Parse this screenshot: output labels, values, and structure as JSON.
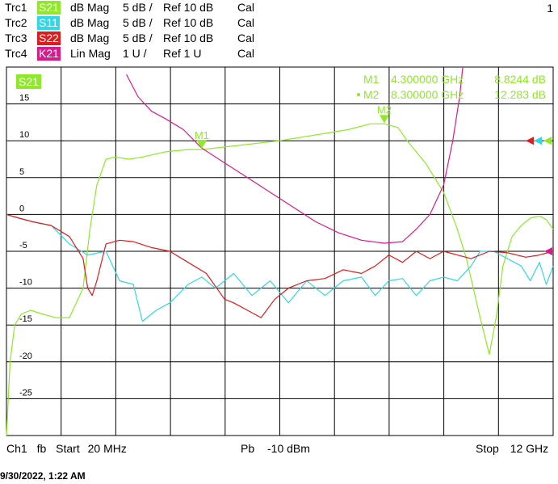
{
  "header": {
    "page_number": "1",
    "traces": [
      {
        "name": "Trc1",
        "param": "S21",
        "format": "dB Mag",
        "scale": "5 dB /",
        "ref": "Ref 10 dB",
        "cal": "Cal",
        "color": "#8fe82a"
      },
      {
        "name": "Trc2",
        "param": "S11",
        "format": "dB Mag",
        "scale": "5 dB /",
        "ref": "Ref 10 dB",
        "cal": "Cal",
        "color": "#33d6e6"
      },
      {
        "name": "Trc3",
        "param": "S22",
        "format": "dB Mag",
        "scale": "5 dB /",
        "ref": "Ref 10 dB",
        "cal": "Cal",
        "color": "#e01b1b"
      },
      {
        "name": "Trc4",
        "param": "K21",
        "format": "Lin Mag",
        "scale": "1 U /",
        "ref": "Ref 1 U",
        "cal": "Cal",
        "color": "#d81b8c"
      }
    ]
  },
  "footer": {
    "channel": "Ch1",
    "mode": "fb",
    "start_label": "Start",
    "start_value": "20 MHz",
    "power_label": "Pb",
    "power_value": "-10 dBm",
    "stop_label": "Stop",
    "stop_value": "12 GHz",
    "datestamp": "9/30/2022, 1:22 AM"
  },
  "chart_data": {
    "type": "line",
    "active_trace_label": "S21",
    "xlim": [
      0.02,
      12
    ],
    "ylim": [
      -30,
      20
    ],
    "y_ticks": [
      15,
      10,
      5,
      0,
      -5,
      -10,
      -15,
      -20,
      -25
    ],
    "y_tick_labels": [
      "15",
      "10",
      "5",
      "0",
      "-5",
      "-10",
      "-15",
      "-20",
      "-25"
    ],
    "grid": true,
    "markers": [
      {
        "name": "M1",
        "freq": "4.300000 GHz",
        "value": "8.8244 dB",
        "x": 4.3,
        "y": 8.82,
        "active": false
      },
      {
        "name": "M2",
        "freq": "8.300000 GHz",
        "value": "12.283 dB",
        "x": 8.3,
        "y": 12.28,
        "active": true
      }
    ],
    "series": [
      {
        "name": "S21",
        "color": "#8fe82a",
        "x": [
          0.02,
          0.1,
          0.2,
          0.35,
          0.55,
          0.8,
          1.1,
          1.4,
          1.7,
          1.85,
          2.0,
          2.2,
          2.4,
          2.7,
          3.0,
          3.5,
          4.0,
          4.3,
          5.0,
          6.0,
          7.0,
          7.5,
          8.0,
          8.3,
          8.6,
          8.8,
          9.2,
          9.6,
          9.9,
          10.1,
          10.4,
          10.6,
          10.75,
          10.9,
          11.1,
          11.3,
          11.5,
          11.7,
          11.85,
          12.0
        ],
        "y": [
          -30,
          -20,
          -15,
          -13.5,
          -13,
          -13.5,
          -14,
          -14,
          -10,
          -2,
          4,
          7.5,
          7.8,
          7.5,
          7.8,
          8.5,
          8.8,
          8.8,
          9.3,
          10,
          11,
          11.5,
          12.3,
          12.3,
          11.8,
          10,
          7,
          3,
          -2,
          -6,
          -14,
          -19,
          -14,
          -7,
          -3,
          -1.5,
          -0.5,
          -0.2,
          -0.7,
          -2
        ]
      },
      {
        "name": "S11",
        "color": "#33d6e6",
        "x": [
          0.02,
          0.3,
          0.6,
          1.0,
          1.4,
          1.8,
          2.2,
          2.5,
          2.8,
          3.0,
          3.3,
          3.6,
          4.0,
          4.3,
          4.6,
          5.0,
          5.4,
          5.8,
          6.2,
          6.6,
          7.0,
          7.4,
          7.8,
          8.1,
          8.4,
          8.7,
          9.0,
          9.3,
          9.6,
          9.9,
          10.2,
          10.4,
          10.7,
          11.0,
          11.3,
          11.5,
          11.7,
          11.85,
          12.0
        ],
        "y": [
          0,
          -0.5,
          -1,
          -1.5,
          -4,
          -5.5,
          -5,
          -9,
          -9.5,
          -14.5,
          -13,
          -12,
          -9.5,
          -8.5,
          -10,
          -8,
          -11,
          -9,
          -12,
          -9,
          -11,
          -9,
          -8.5,
          -11,
          -9,
          -8.7,
          -11,
          -9,
          -8.5,
          -9,
          -7,
          -5,
          -5,
          -6,
          -7,
          -9,
          -6.5,
          -9.5,
          -7
        ]
      },
      {
        "name": "S22",
        "color": "#e01b1b",
        "x": [
          0.02,
          0.3,
          0.6,
          1.0,
          1.4,
          1.7,
          1.8,
          1.9,
          2.0,
          2.2,
          2.5,
          2.8,
          3.2,
          3.6,
          4.0,
          4.4,
          4.8,
          5.0,
          5.3,
          5.6,
          5.9,
          6.2,
          6.6,
          7.0,
          7.4,
          7.8,
          8.1,
          8.4,
          8.7,
          9.0,
          9.3,
          9.6,
          9.9,
          10.2,
          10.6,
          11.0,
          11.4,
          11.7,
          12.0
        ],
        "y": [
          0,
          -0.5,
          -1,
          -1.5,
          -3,
          -6,
          -10,
          -11,
          -9,
          -4,
          -3.5,
          -3.7,
          -4.5,
          -5,
          -6.5,
          -8,
          -11.5,
          -12,
          -13,
          -14,
          -11.5,
          -10,
          -9,
          -8.7,
          -7.5,
          -8,
          -7,
          -5.5,
          -6.5,
          -5,
          -6,
          -5,
          -5.5,
          -6,
          -5,
          -5.2,
          -5.8,
          -5.5,
          -5
        ]
      },
      {
        "name": "K21",
        "color": "#d81b8c",
        "x": [
          2.65,
          2.9,
          3.2,
          3.5,
          3.9,
          4.3,
          4.8,
          5.3,
          5.8,
          6.3,
          6.8,
          7.3,
          7.8,
          8.3,
          8.7,
          9.0,
          9.3,
          9.6,
          9.8,
          9.95,
          10.02
        ],
        "y": [
          19,
          16,
          14,
          13,
          11.5,
          9,
          7,
          5,
          3,
          1,
          -1,
          -2.5,
          -3.5,
          -3.9,
          -3.7,
          -2,
          0,
          4,
          10,
          16,
          20
        ]
      }
    ]
  }
}
